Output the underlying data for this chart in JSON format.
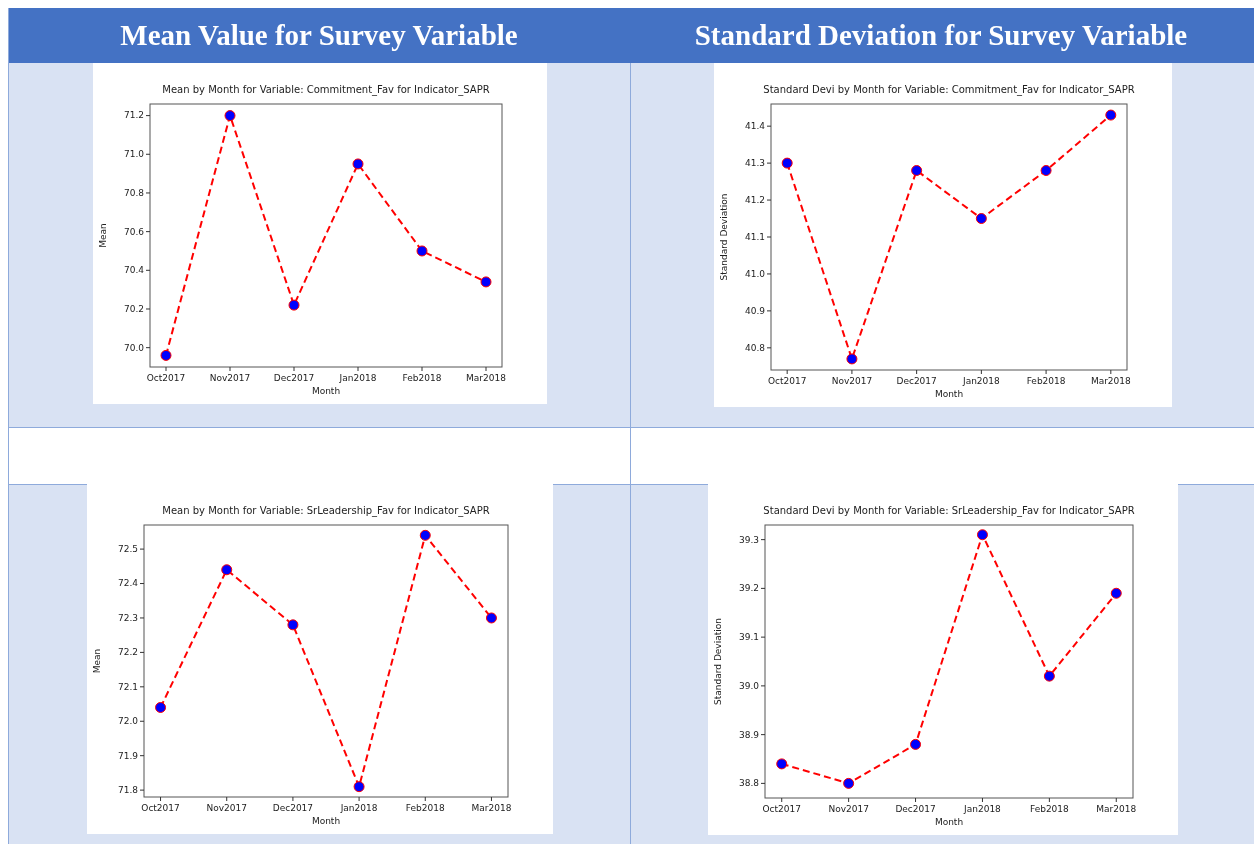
{
  "chart_data": [
    {
      "type": "other",
      "title": "Mean Value for Survey Variable"
    },
    {
      "type": "other",
      "title": "Standard Deviation for Survey Variable"
    },
    {
      "type": "line",
      "title": "Mean by Month for Variable: Commitment_Fav for Indicator_SAPR",
      "xlabel": "Month",
      "ylabel": "Mean",
      "categories": [
        "Oct2017",
        "Nov2017",
        "Dec2017",
        "Jan2018",
        "Feb2018",
        "Mar2018"
      ],
      "series": [
        {
          "color": "#ff0000",
          "values": [
            69.96,
            71.2,
            70.22,
            70.95,
            70.5,
            70.34
          ]
        }
      ],
      "ylim": [
        69.9,
        71.26
      ],
      "yticks": [
        {
          "value": 70,
          "label": "70.0"
        },
        70.2,
        70.4,
        70.6,
        70.8,
        {
          "value": 71,
          "label": "71.0"
        },
        71.2
      ],
      "marker": "circle",
      "line_style": "dashed",
      "grid": false
    },
    {
      "type": "line",
      "title": "Standard Devi by Month for Variable: Commitment_Fav for Indicator_SAPR",
      "xlabel": "Month",
      "ylabel": "Standard Deviation",
      "categories": [
        "Oct2017",
        "Nov2017",
        "Dec2017",
        "Jan2018",
        "Feb2018",
        "Mar2018"
      ],
      "series": [
        {
          "color": "#ff0000",
          "values": [
            41.3,
            40.77,
            41.28,
            41.15,
            41.28,
            41.43
          ]
        }
      ],
      "ylim": [
        40.74,
        41.46
      ],
      "yticks": [
        40.8,
        40.9,
        {
          "value": 41,
          "label": "41.0"
        },
        41.1,
        41.2,
        41.3,
        41.4
      ],
      "marker": "circle",
      "line_style": "dashed",
      "grid": false
    },
    {
      "type": "line",
      "title": "Mean by Month for Variable: SrLeadership_Fav for Indicator_SAPR",
      "xlabel": "Month",
      "ylabel": "Mean",
      "categories": [
        "Oct2017",
        "Nov2017",
        "Dec2017",
        "Jan2018",
        "Feb2018",
        "Mar2018"
      ],
      "series": [
        {
          "color": "#ff0000",
          "values": [
            72.04,
            72.44,
            72.28,
            71.81,
            72.54,
            72.3
          ]
        }
      ],
      "ylim": [
        71.78,
        72.57
      ],
      "yticks": [
        71.8,
        71.9,
        {
          "value": 72,
          "label": "72.0"
        },
        72.1,
        72.2,
        72.3,
        72.4,
        72.5
      ],
      "marker": "circle",
      "line_style": "dashed",
      "grid": false
    },
    {
      "type": "line",
      "title": "Standard Devi by Month for Variable: SrLeadership_Fav for Indicator_SAPR",
      "xlabel": "Month",
      "ylabel": "Standard Deviation",
      "categories": [
        "Oct2017",
        "Nov2017",
        "Dec2017",
        "Jan2018",
        "Feb2018",
        "Mar2018"
      ],
      "series": [
        {
          "color": "#ff0000",
          "values": [
            38.84,
            38.8,
            38.88,
            39.31,
            39.02,
            39.19
          ]
        }
      ],
      "ylim": [
        38.77,
        39.33
      ],
      "yticks": [
        38.8,
        38.9,
        {
          "value": 39,
          "label": "39.0"
        },
        39.1,
        39.2,
        39.3
      ],
      "marker": "circle",
      "line_style": "dashed",
      "grid": false
    }
  ]
}
